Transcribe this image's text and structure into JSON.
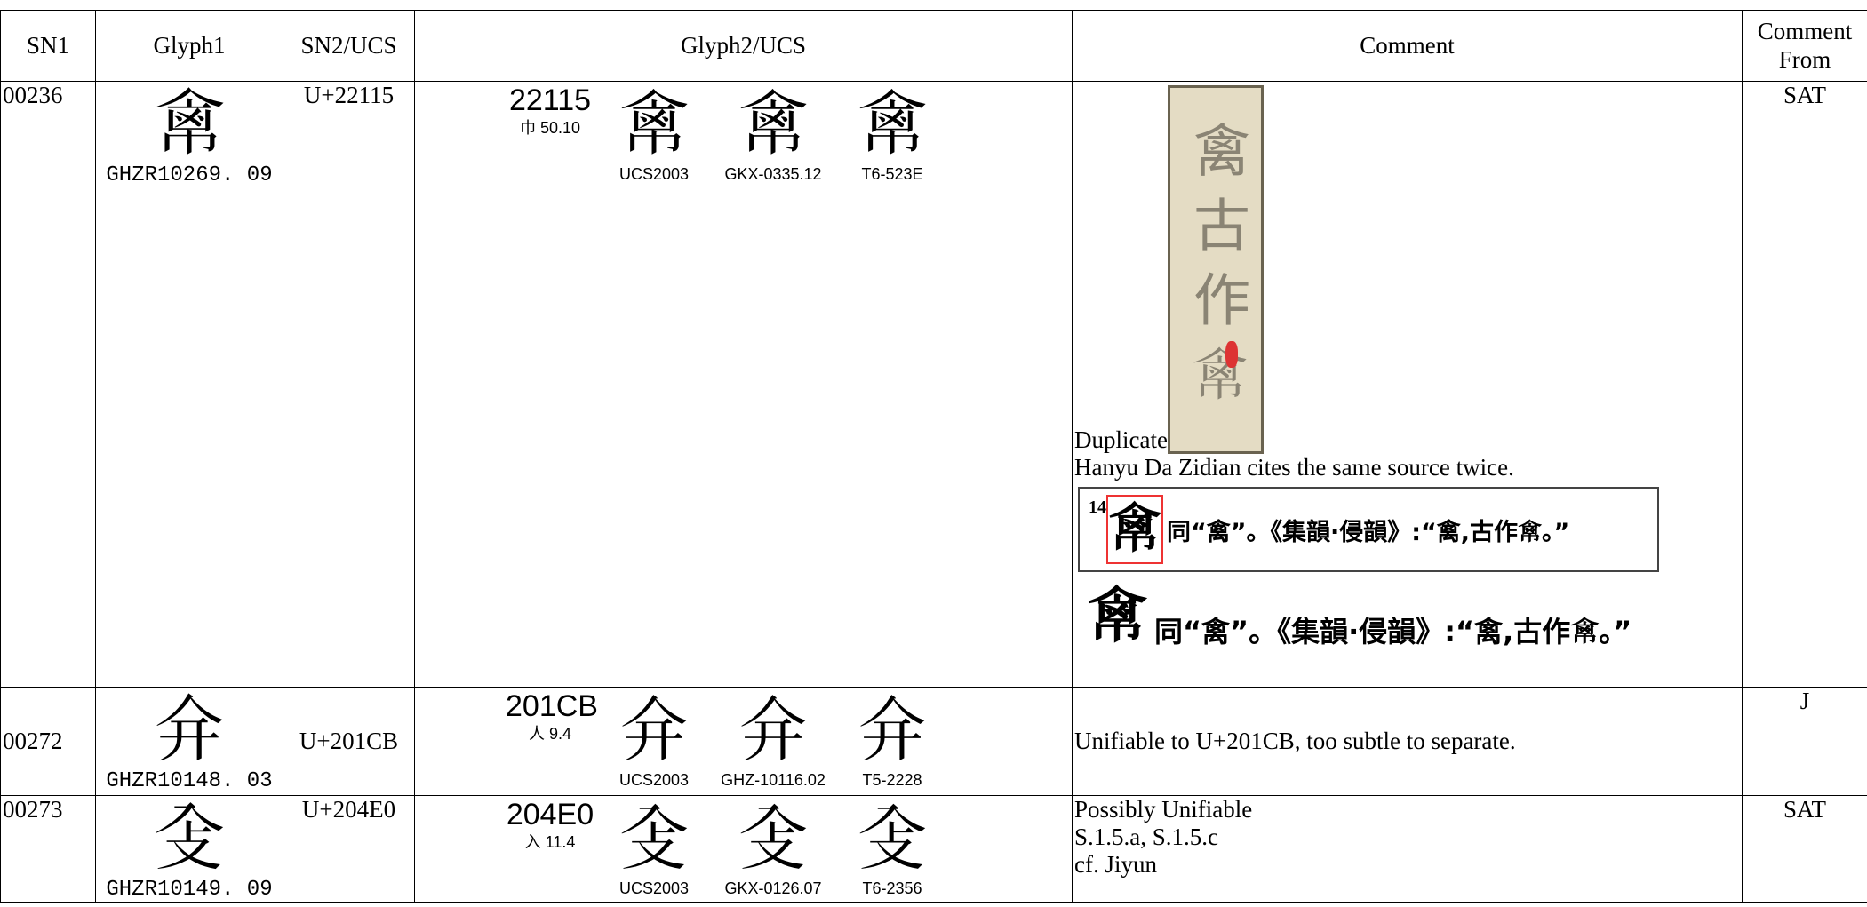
{
  "table": {
    "header": [
      "SN1",
      "Glyph1",
      "SN2/UCS",
      "Glyph2/UCS",
      "Comment",
      "Comment From"
    ],
    "rows": [
      {
        "sn1": "00236",
        "glyph1": {
          "char": "𢄕",
          "source": "GHZR10269. 09"
        },
        "sn2": "U+22115",
        "glyph2": {
          "code": "22115",
          "radical": "巾 50.10",
          "char": "𢄕",
          "sources": [
            "UCS2003",
            "GKX-0335.12",
            "T6-523E"
          ]
        },
        "comment": {
          "scan_text": "禽古作𢄕",
          "lines": [
            "Duplicate",
            "Hanyu Da Zidian cites the same source twice."
          ],
          "entry": {
            "number": "14",
            "char": "𢄕",
            "text": "同“禽”。《集韻·侵韻》:“禽,古作𢄕。”"
          },
          "entry2": {
            "char": "𢄕",
            "text": "同“禽”。《集韻·侵韻》:“禽,古作𢄕。”"
          }
        },
        "from": "SAT"
      },
      {
        "sn1": "00272",
        "glyph1": {
          "char": "𠇋",
          "source": "GHZR10148. 03"
        },
        "sn2": "U+201CB",
        "glyph2": {
          "code": "201CB",
          "radical": "人 9.4",
          "char": "𠇋",
          "sources": [
            "UCS2003",
            "GHZ-10116.02",
            "T5-2228"
          ]
        },
        "comment": {
          "lines": [
            "Unifiable to U+201CB, too subtle to separate."
          ]
        },
        "from": "J"
      },
      {
        "sn1": "00273",
        "glyph1": {
          "char": "𠓠",
          "source": "GHZR10149. 09"
        },
        "sn2": "U+204E0",
        "glyph2": {
          "code": "204E0",
          "radical": "入 11.4",
          "char": "𠓠",
          "sources": [
            "UCS2003",
            "GKX-0126.07",
            "T6-2356"
          ]
        },
        "comment": {
          "lines": [
            "Possibly Unifiable",
            "S.1.5.a, S.1.5.c",
            "cf. Jiyun"
          ]
        },
        "from": "SAT"
      }
    ]
  }
}
